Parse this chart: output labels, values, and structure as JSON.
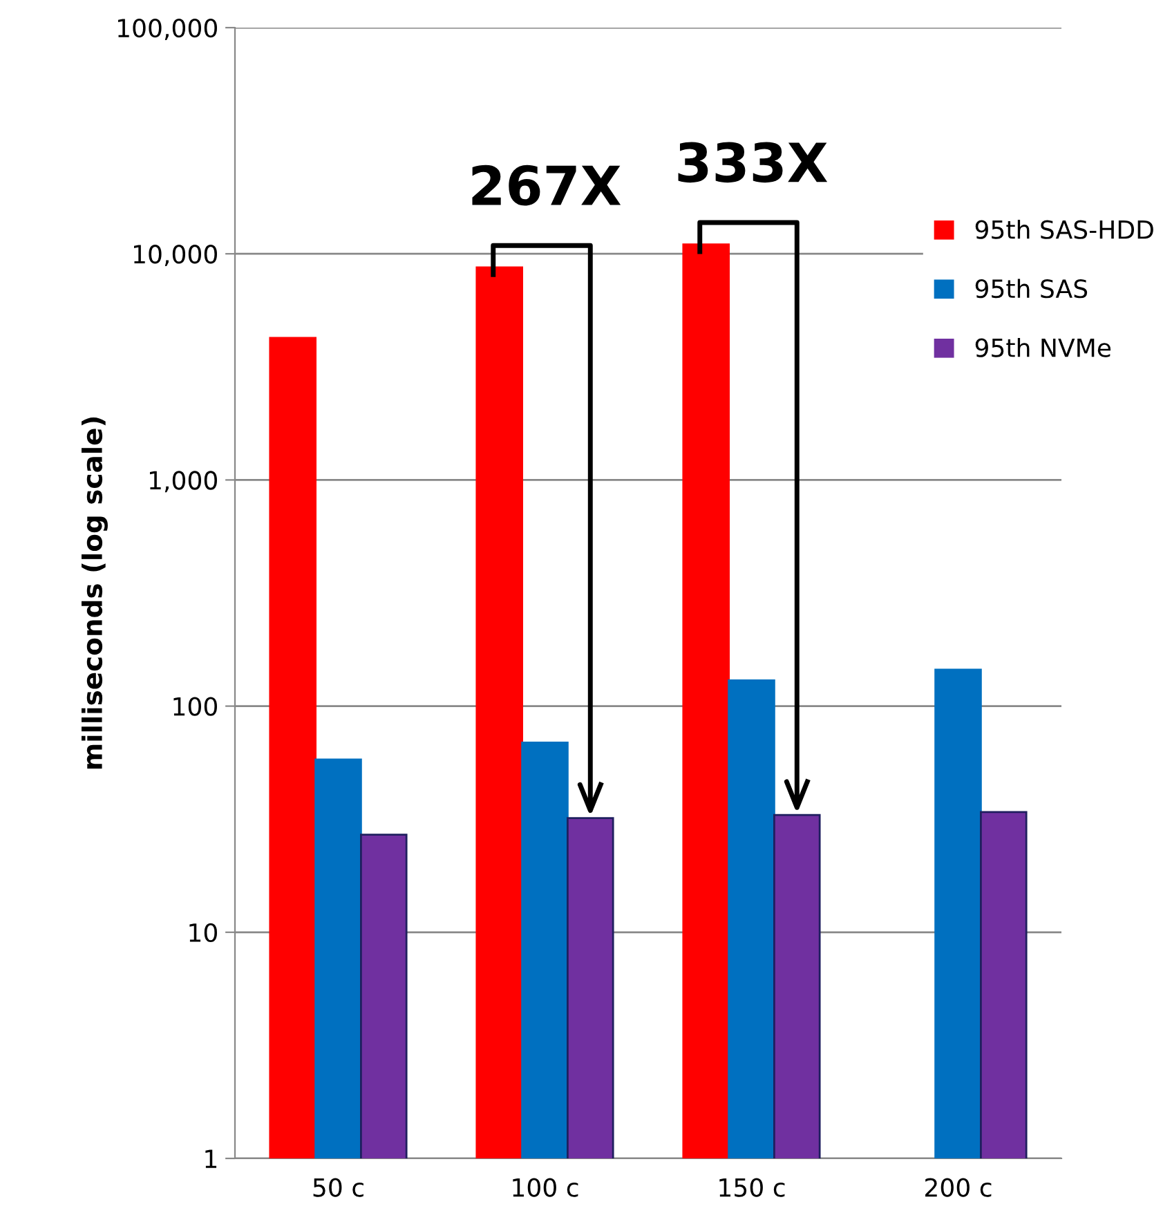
{
  "chart_data": {
    "type": "bar",
    "ylabel": "milliseconds (log scale)",
    "log": true,
    "categories": [
      "50 c",
      "100 c",
      "150 c",
      "200 c"
    ],
    "series": [
      {
        "name": "95th SAS-HDD",
        "color": "#ff0000",
        "values": [
          4250,
          8700,
          11000,
          null
        ]
      },
      {
        "name": "95th SAS",
        "color": "#0070c0",
        "values": [
          58,
          69,
          130,
          145
        ]
      },
      {
        "name": "95th NVMe",
        "color": "#7030a0",
        "values": [
          27,
          32,
          33,
          34
        ]
      }
    ],
    "ylim": [
      1,
      100000
    ],
    "yticks": [
      {
        "value": 1,
        "label": "1"
      },
      {
        "value": 10,
        "label": "10"
      },
      {
        "value": 100,
        "label": "100"
      },
      {
        "value": 1000,
        "label": "1,000"
      },
      {
        "value": 10000,
        "label": "10,000"
      },
      {
        "value": 100000,
        "label": "100,000"
      }
    ],
    "annotations": [
      "267X",
      "333X"
    ],
    "grid": "y",
    "legend": "right"
  }
}
